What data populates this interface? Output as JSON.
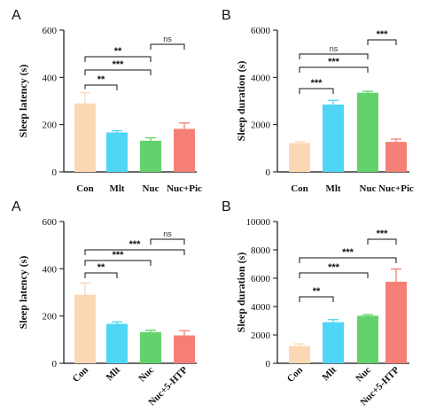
{
  "chart_data": [
    {
      "type": "bar",
      "panel_letter": "A",
      "ylabel": "Sleep latency (s)",
      "xlabel": "",
      "ylim": [
        0,
        600
      ],
      "yticks": [
        0,
        200,
        400,
        600
      ],
      "categories": [
        "Con",
        "Mlt",
        "Nuc",
        "Nuc+Pic"
      ],
      "values": [
        290,
        167,
        132,
        182
      ],
      "errors": [
        45,
        7,
        12,
        25
      ],
      "colors": [
        "#fcd7b4",
        "#4fd5f5",
        "#62d36c",
        "#f57f76"
      ],
      "comparisons": [
        {
          "from": "Con",
          "to": "Mlt",
          "label": "**"
        },
        {
          "from": "Con",
          "to": "Nuc",
          "label": "***"
        },
        {
          "from": "Con",
          "to": "Nuc",
          "label": "**"
        },
        {
          "from": "Nuc",
          "to": "Nuc+Pic",
          "label": "ns"
        }
      ]
    },
    {
      "type": "bar",
      "panel_letter": "B",
      "ylabel": "Sleep duration (s)",
      "xlabel": "",
      "ylim": [
        0,
        6000
      ],
      "yticks": [
        0,
        2000,
        4000,
        6000
      ],
      "categories": [
        "Con",
        "Mlt",
        "Nuc",
        "Nuc+Pic"
      ],
      "values": [
        1220,
        2850,
        3350,
        1270
      ],
      "errors": [
        60,
        180,
        60,
        120
      ],
      "colors": [
        "#fcd7b4",
        "#4fd5f5",
        "#62d36c",
        "#f57f76"
      ],
      "comparisons": [
        {
          "from": "Con",
          "to": "Mlt",
          "label": "***"
        },
        {
          "from": "Con",
          "to": "Nuc",
          "label": "***"
        },
        {
          "from": "Con",
          "to": "Nuc",
          "label": "ns"
        },
        {
          "from": "Nuc",
          "to": "Nuc+Pic",
          "label": "***"
        }
      ]
    },
    {
      "type": "bar",
      "panel_letter": "A",
      "ylabel": "Sleep latency (s)",
      "xlabel": "",
      "ylim": [
        0,
        600
      ],
      "yticks": [
        0,
        200,
        400,
        600
      ],
      "categories": [
        "Con",
        "Mlt",
        "Nuc",
        "Nuc+5-HTP"
      ],
      "values": [
        290,
        167,
        132,
        118
      ],
      "errors": [
        50,
        8,
        8,
        20
      ],
      "colors": [
        "#fcd7b4",
        "#4fd5f5",
        "#62d36c",
        "#f57f76"
      ],
      "comparisons": [
        {
          "from": "Con",
          "to": "Mlt",
          "label": "**"
        },
        {
          "from": "Con",
          "to": "Nuc",
          "label": "***"
        },
        {
          "from": "Con",
          "to": "Nuc+5-HTP",
          "label": "***"
        },
        {
          "from": "Nuc",
          "to": "Nuc+5-HTP",
          "label": "ns"
        }
      ]
    },
    {
      "type": "bar",
      "panel_letter": "B",
      "ylabel": "Sleep duration (s)",
      "xlabel": "",
      "ylim": [
        0,
        10000
      ],
      "yticks": [
        0,
        2000,
        4000,
        6000,
        8000,
        10000
      ],
      "categories": [
        "Con",
        "Mlt",
        "Nuc",
        "Nuc+5-HTP"
      ],
      "values": [
        1220,
        2900,
        3350,
        5750
      ],
      "errors": [
        150,
        180,
        80,
        900
      ],
      "colors": [
        "#fcd7b4",
        "#4fd5f5",
        "#62d36c",
        "#f57f76"
      ],
      "comparisons": [
        {
          "from": "Con",
          "to": "Mlt",
          "label": "**"
        },
        {
          "from": "Con",
          "to": "Nuc",
          "label": "***"
        },
        {
          "from": "Con",
          "to": "Nuc+5-HTP",
          "label": "***"
        },
        {
          "from": "Nuc",
          "to": "Nuc+5-HTP",
          "label": "***"
        }
      ]
    }
  ]
}
